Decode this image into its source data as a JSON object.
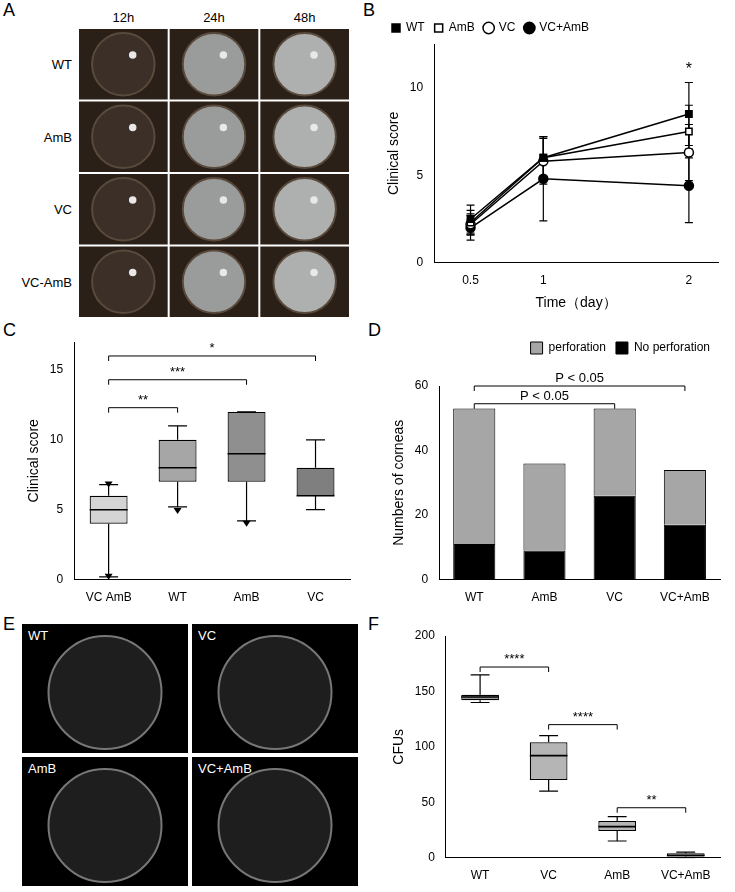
{
  "photo_panels": [
    {
      "panel": "A",
      "type": "photo_grid",
      "columns": [
        "12h",
        "24h",
        "48h"
      ],
      "rows": [
        "WT",
        "AmB",
        "VC",
        "VC-AmB"
      ]
    },
    {
      "panel": "E",
      "type": "photo_grid",
      "labels": [
        "WT",
        "VC",
        "AmB",
        "VC+AmB"
      ]
    }
  ],
  "chart_data": [
    {
      "panel": "B",
      "type": "line",
      "x_label": "Time（day）",
      "y_label": "Clinical score",
      "x": [
        0.5,
        1,
        2
      ],
      "series": [
        {
          "name": "WT",
          "color": "#000000",
          "marker": "square",
          "values": [
            2.5,
            6.0,
            8.5
          ],
          "errors": [
            0.8,
            1.2,
            1.8
          ]
        },
        {
          "name": "AmB",
          "color": "#000000",
          "marker": "open_square",
          "values": [
            2.3,
            6.0,
            7.5
          ],
          "errors": [
            0.7,
            1.2,
            1.5
          ]
        },
        {
          "name": "VC",
          "color": "#000000",
          "marker": "open_circle",
          "values": [
            2.2,
            5.8,
            6.3
          ],
          "errors": [
            0.6,
            1.3,
            1.6
          ]
        },
        {
          "name": "VC+AmB",
          "color": "#000000",
          "marker": "circle",
          "values": [
            2.0,
            4.8,
            4.4
          ],
          "errors": [
            0.7,
            2.4,
            2.1
          ]
        }
      ],
      "xlim": [
        0.25,
        2.2
      ],
      "xticks": [
        0.5,
        1,
        2
      ],
      "ylim": [
        0,
        12.5
      ],
      "yticks": [
        0,
        5,
        10
      ],
      "grid": false,
      "legend": "top left",
      "annotations": [
        {
          "text": "*",
          "x": 2,
          "y": 10.6
        }
      ]
    },
    {
      "panel": "C",
      "type": "box",
      "y_label": "Clinical score",
      "categories": [
        "VC AmB",
        "WT",
        "AmB",
        "VC"
      ],
      "colors": [
        "#d4d4d4",
        "#a6a6a6",
        "#8f8f8f",
        "#7f7f7f"
      ],
      "whisker_low": [
        0.2,
        5.2,
        4.2,
        5.0
      ],
      "q1": [
        4,
        7,
        7,
        6
      ],
      "median": [
        5,
        8,
        9,
        6
      ],
      "q3": [
        6,
        10,
        12,
        8
      ],
      "whisker_high": [
        6.8,
        11,
        12,
        10
      ],
      "outliers": [
        [
          0.2,
          6.8
        ],
        [
          4.9
        ],
        [
          4.0
        ],
        []
      ],
      "ylim": [
        0,
        17
      ],
      "yticks": [
        0,
        5,
        10,
        15
      ],
      "grid": false,
      "comparisons": [
        {
          "from": "VC AmB",
          "to": "WT",
          "y": 12.3,
          "label": "**"
        },
        {
          "from": "VC AmB",
          "to": "AmB",
          "y": 14.3,
          "label": "***"
        },
        {
          "from": "VC AmB",
          "to": "VC",
          "y": 16,
          "label": "*"
        }
      ]
    },
    {
      "panel": "D",
      "type": "bar",
      "stacked": true,
      "y_label": "Numbers of corneas",
      "categories": [
        "WT",
        "AmB",
        "VC",
        "VC+AmB"
      ],
      "series": [
        {
          "name": "perforation",
          "color": "#a6a6a6",
          "values": [
            42,
            27,
            27,
            17
          ]
        },
        {
          "name": "No perforation",
          "color": "#000000",
          "values": [
            11,
            9,
            26,
            17
          ]
        }
      ],
      "ylim": [
        0,
        60
      ],
      "yticks": [
        0,
        20,
        40,
        60
      ],
      "grid": false,
      "legend": "top right",
      "comparisons": [
        {
          "from": "WT",
          "to": "VC",
          "y": 54.5,
          "label": "P < 0.05"
        },
        {
          "from": "WT",
          "to": "VC+AmB",
          "y": 60,
          "label": "P < 0.05"
        }
      ]
    },
    {
      "panel": "F",
      "type": "box",
      "y_label": "CFUs",
      "categories": [
        "WT",
        "VC",
        "AmB",
        "VC+AmB"
      ],
      "colors": [
        "#9e9e9e",
        "#b5b5b5",
        "#b5b5b5",
        "#b5b5b5"
      ],
      "whisker_low": [
        140,
        60,
        15,
        0
      ],
      "q1": [
        142,
        70,
        24,
        1
      ],
      "median": [
        145,
        92,
        28,
        2
      ],
      "q3": [
        147,
        104,
        33,
        4
      ],
      "whisker_high": [
        165,
        110,
        37,
        5
      ],
      "ylim": [
        0,
        200
      ],
      "yticks": [
        0,
        50,
        100,
        150,
        200
      ],
      "grid": false,
      "comparisons": [
        {
          "from": "WT",
          "to": "VC",
          "y": 172,
          "label": "****"
        },
        {
          "from": "VC",
          "to": "AmB",
          "y": 120,
          "label": "****"
        },
        {
          "from": "AmB",
          "to": "VC+AmB",
          "y": 45,
          "label": "**"
        }
      ]
    }
  ]
}
